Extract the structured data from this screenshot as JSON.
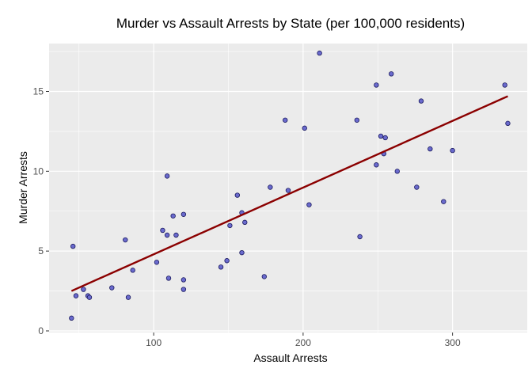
{
  "chart_data": {
    "type": "scatter",
    "title": "Murder vs Assault Arrests by State (per 100,000 residents)",
    "xlabel": "Assault Arrests",
    "ylabel": "Murder Arrests",
    "xlim": [
      30,
      350
    ],
    "ylim": [
      -0.1,
      18
    ],
    "xticks": [
      100,
      200,
      300
    ],
    "yticks": [
      0,
      5,
      10,
      15
    ],
    "grid": true,
    "colors": {
      "panel_bg": "#EBEBEB",
      "grid": "#FFFFFF",
      "point_fill": "#6A6ACD",
      "point_stroke": "#1A1A5E",
      "trend_line": "#8B0000"
    },
    "points": [
      [
        236,
        13.2
      ],
      [
        263,
        10.0
      ],
      [
        294,
        8.1
      ],
      [
        190,
        8.8
      ],
      [
        276,
        9.0
      ],
      [
        204,
        7.9
      ],
      [
        110,
        3.3
      ],
      [
        238,
        5.9
      ],
      [
        335,
        15.4
      ],
      [
        211,
        17.4
      ],
      [
        46,
        5.3
      ],
      [
        120,
        2.6
      ],
      [
        249,
        10.4
      ],
      [
        113,
        7.2
      ],
      [
        56,
        2.2
      ],
      [
        115,
        6.0
      ],
      [
        109,
        9.7
      ],
      [
        249,
        15.4
      ],
      [
        83,
        2.1
      ],
      [
        300,
        11.3
      ],
      [
        149,
        4.4
      ],
      [
        255,
        12.1
      ],
      [
        72,
        2.7
      ],
      [
        259,
        16.1
      ],
      [
        178,
        9.0
      ],
      [
        109,
        6.0
      ],
      [
        102,
        4.3
      ],
      [
        252,
        12.2
      ],
      [
        57,
        2.1
      ],
      [
        159,
        7.4
      ],
      [
        285,
        11.4
      ],
      [
        254,
        11.1
      ],
      [
        337,
        13.0
      ],
      [
        45,
        0.8
      ],
      [
        120,
        7.3
      ],
      [
        151,
        6.6
      ],
      [
        159,
        4.9
      ],
      [
        106,
        6.3
      ],
      [
        174,
        3.4
      ],
      [
        279,
        14.4
      ],
      [
        86,
        3.8
      ],
      [
        188,
        13.2
      ],
      [
        201,
        12.7
      ],
      [
        120,
        3.2
      ],
      [
        48,
        2.2
      ],
      [
        156,
        8.5
      ],
      [
        145,
        4.0
      ],
      [
        81,
        5.7
      ],
      [
        53,
        2.6
      ],
      [
        161,
        6.8
      ]
    ],
    "trend": {
      "type": "linear",
      "x_range": [
        45,
        337
      ],
      "y_range": [
        2.5,
        14.7
      ]
    }
  }
}
